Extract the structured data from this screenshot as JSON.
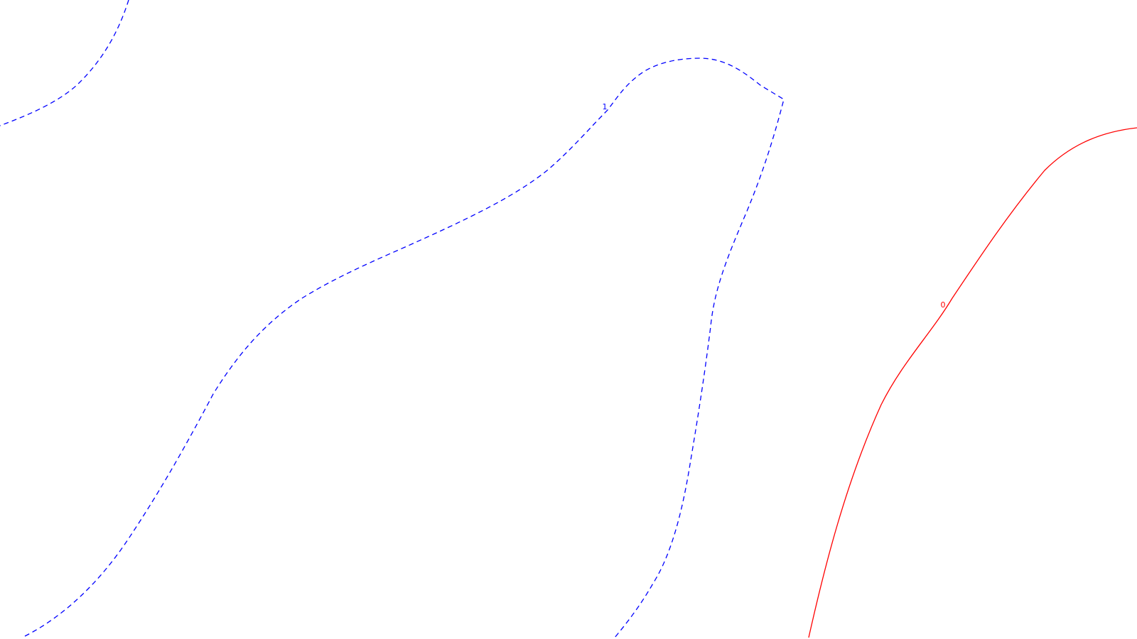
{
  "contours": {
    "level_1": {
      "label": "1",
      "color": "#0000ff",
      "style": "dashed"
    },
    "level_0": {
      "label": "0",
      "color": "#ff0000",
      "style": "solid"
    }
  }
}
